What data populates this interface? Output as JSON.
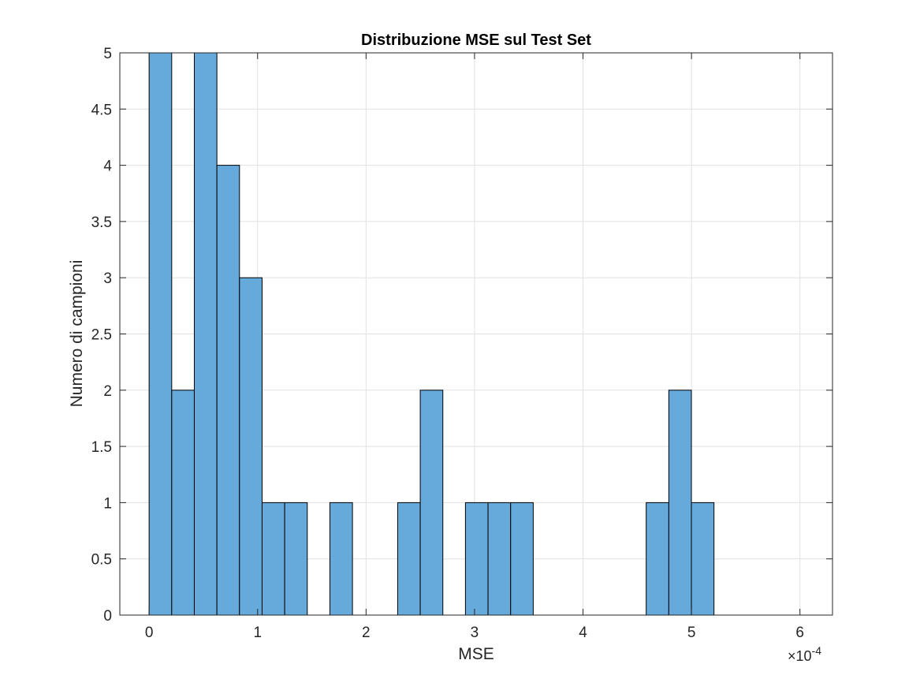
{
  "chart_data": {
    "type": "bar",
    "title": "Distribuzione MSE sul Test Set",
    "xlabel": "MSE",
    "ylabel": "Numero di campioni",
    "x_exponent": {
      "base": "×10",
      "power": "-4"
    },
    "xlim": [
      -0.27,
      6.3
    ],
    "ylim": [
      0,
      5
    ],
    "x_ticks": [
      0,
      1,
      2,
      3,
      4,
      5,
      6
    ],
    "x_tick_labels": [
      "0",
      "1",
      "2",
      "3",
      "4",
      "5",
      "6"
    ],
    "y_ticks": [
      0,
      0.5,
      1,
      1.5,
      2,
      2.5,
      3,
      3.5,
      4,
      4.5,
      5
    ],
    "y_tick_labels": [
      "0",
      "0.5",
      "1",
      "1.5",
      "2",
      "2.5",
      "3",
      "3.5",
      "4",
      "4.5",
      "5"
    ],
    "bin_start": 0,
    "bin_width": 0.2083,
    "counts": [
      5,
      2,
      5,
      4,
      3,
      1,
      1,
      0,
      1,
      0,
      0,
      1,
      2,
      0,
      1,
      1,
      1,
      0,
      0,
      0,
      0,
      0,
      1,
      2,
      1,
      0,
      0,
      0,
      0,
      0
    ],
    "grid": true,
    "bar_color": "#65aadb",
    "bar_edge_color": "#000000",
    "grid_color": "#e1e1e1",
    "axis_color": "#262626"
  }
}
